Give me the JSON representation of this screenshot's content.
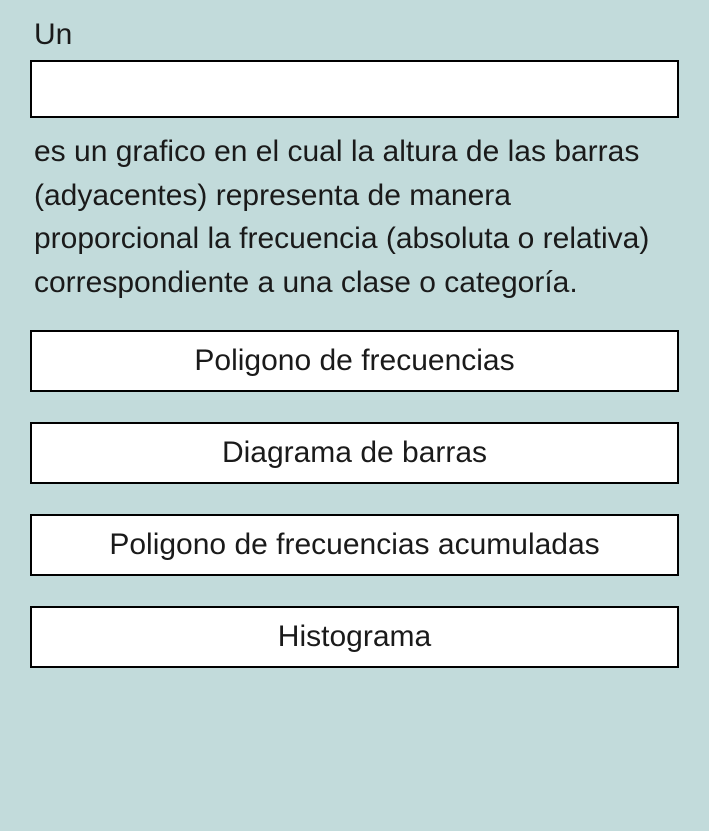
{
  "question": {
    "text_before": "Un",
    "text_after": "es un grafico en el cual la altura de las barras (adyacentes) representa de manera proporcional la frecuencia (absoluta o relativa) correspondiente a una clase o categoría.",
    "drop_zone_value": ""
  },
  "options": [
    {
      "label": "Poligono de frecuencias"
    },
    {
      "label": "Diagrama de barras"
    },
    {
      "label": "Poligono de frecuencias acumuladas"
    },
    {
      "label": "Histograma"
    }
  ],
  "colors": {
    "background": "#c2dbdb",
    "box_background": "#ffffff",
    "box_border": "#000000",
    "text": "#1a1a1a"
  }
}
